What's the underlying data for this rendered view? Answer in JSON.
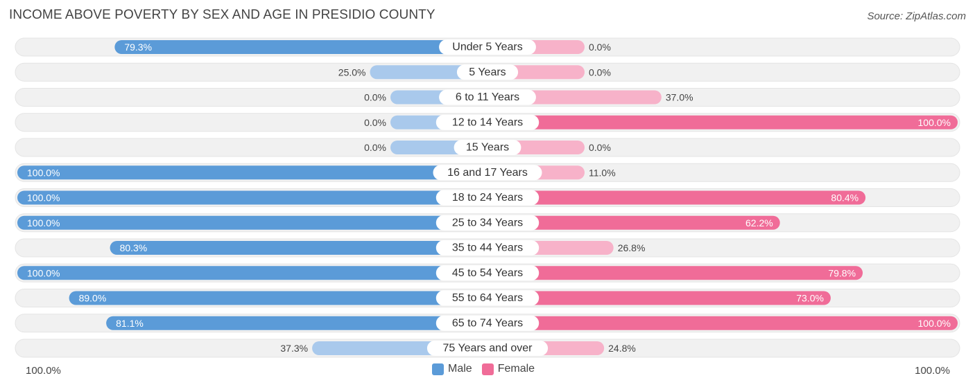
{
  "header": {
    "title": "INCOME ABOVE POVERTY BY SEX AND AGE IN PRESIDIO COUNTY",
    "source": "Source: ZipAtlas.com"
  },
  "axis": {
    "left_label": "100.0%",
    "right_label": "100.0%"
  },
  "legend": {
    "male": "Male",
    "female": "Female"
  },
  "colors": {
    "male_strong": "#5b9bd8",
    "male_light": "#a9c9ec",
    "female_strong": "#f06c98",
    "female_light": "#f7b2c9",
    "track": "#f1f1f1"
  },
  "chart_data": {
    "type": "bar",
    "orientation": "horizontal-diverging",
    "title": "INCOME ABOVE POVERTY BY SEX AND AGE IN PRESIDIO COUNTY",
    "xlim": [
      0,
      100
    ],
    "categories": [
      "Under 5 Years",
      "5 Years",
      "6 to 11 Years",
      "12 to 14 Years",
      "15 Years",
      "16 and 17 Years",
      "18 to 24 Years",
      "25 to 34 Years",
      "35 to 44 Years",
      "45 to 54 Years",
      "55 to 64 Years",
      "65 to 74 Years",
      "75 Years and over"
    ],
    "series": [
      {
        "name": "Male",
        "values": [
          79.3,
          25.0,
          0.0,
          0.0,
          0.0,
          100.0,
          100.0,
          100.0,
          80.3,
          100.0,
          89.0,
          81.1,
          37.3
        ],
        "labels": [
          "79.3%",
          "25.0%",
          "0.0%",
          "0.0%",
          "0.0%",
          "100.0%",
          "100.0%",
          "100.0%",
          "80.3%",
          "100.0%",
          "89.0%",
          "81.1%",
          "37.3%"
        ]
      },
      {
        "name": "Female",
        "values": [
          0.0,
          0.0,
          37.0,
          100.0,
          0.0,
          11.0,
          80.4,
          62.2,
          26.8,
          79.8,
          73.0,
          100.0,
          24.8
        ],
        "labels": [
          "0.0%",
          "0.0%",
          "37.0%",
          "100.0%",
          "0.0%",
          "11.0%",
          "80.4%",
          "62.2%",
          "26.8%",
          "79.8%",
          "73.0%",
          "100.0%",
          "24.8%"
        ]
      }
    ]
  }
}
